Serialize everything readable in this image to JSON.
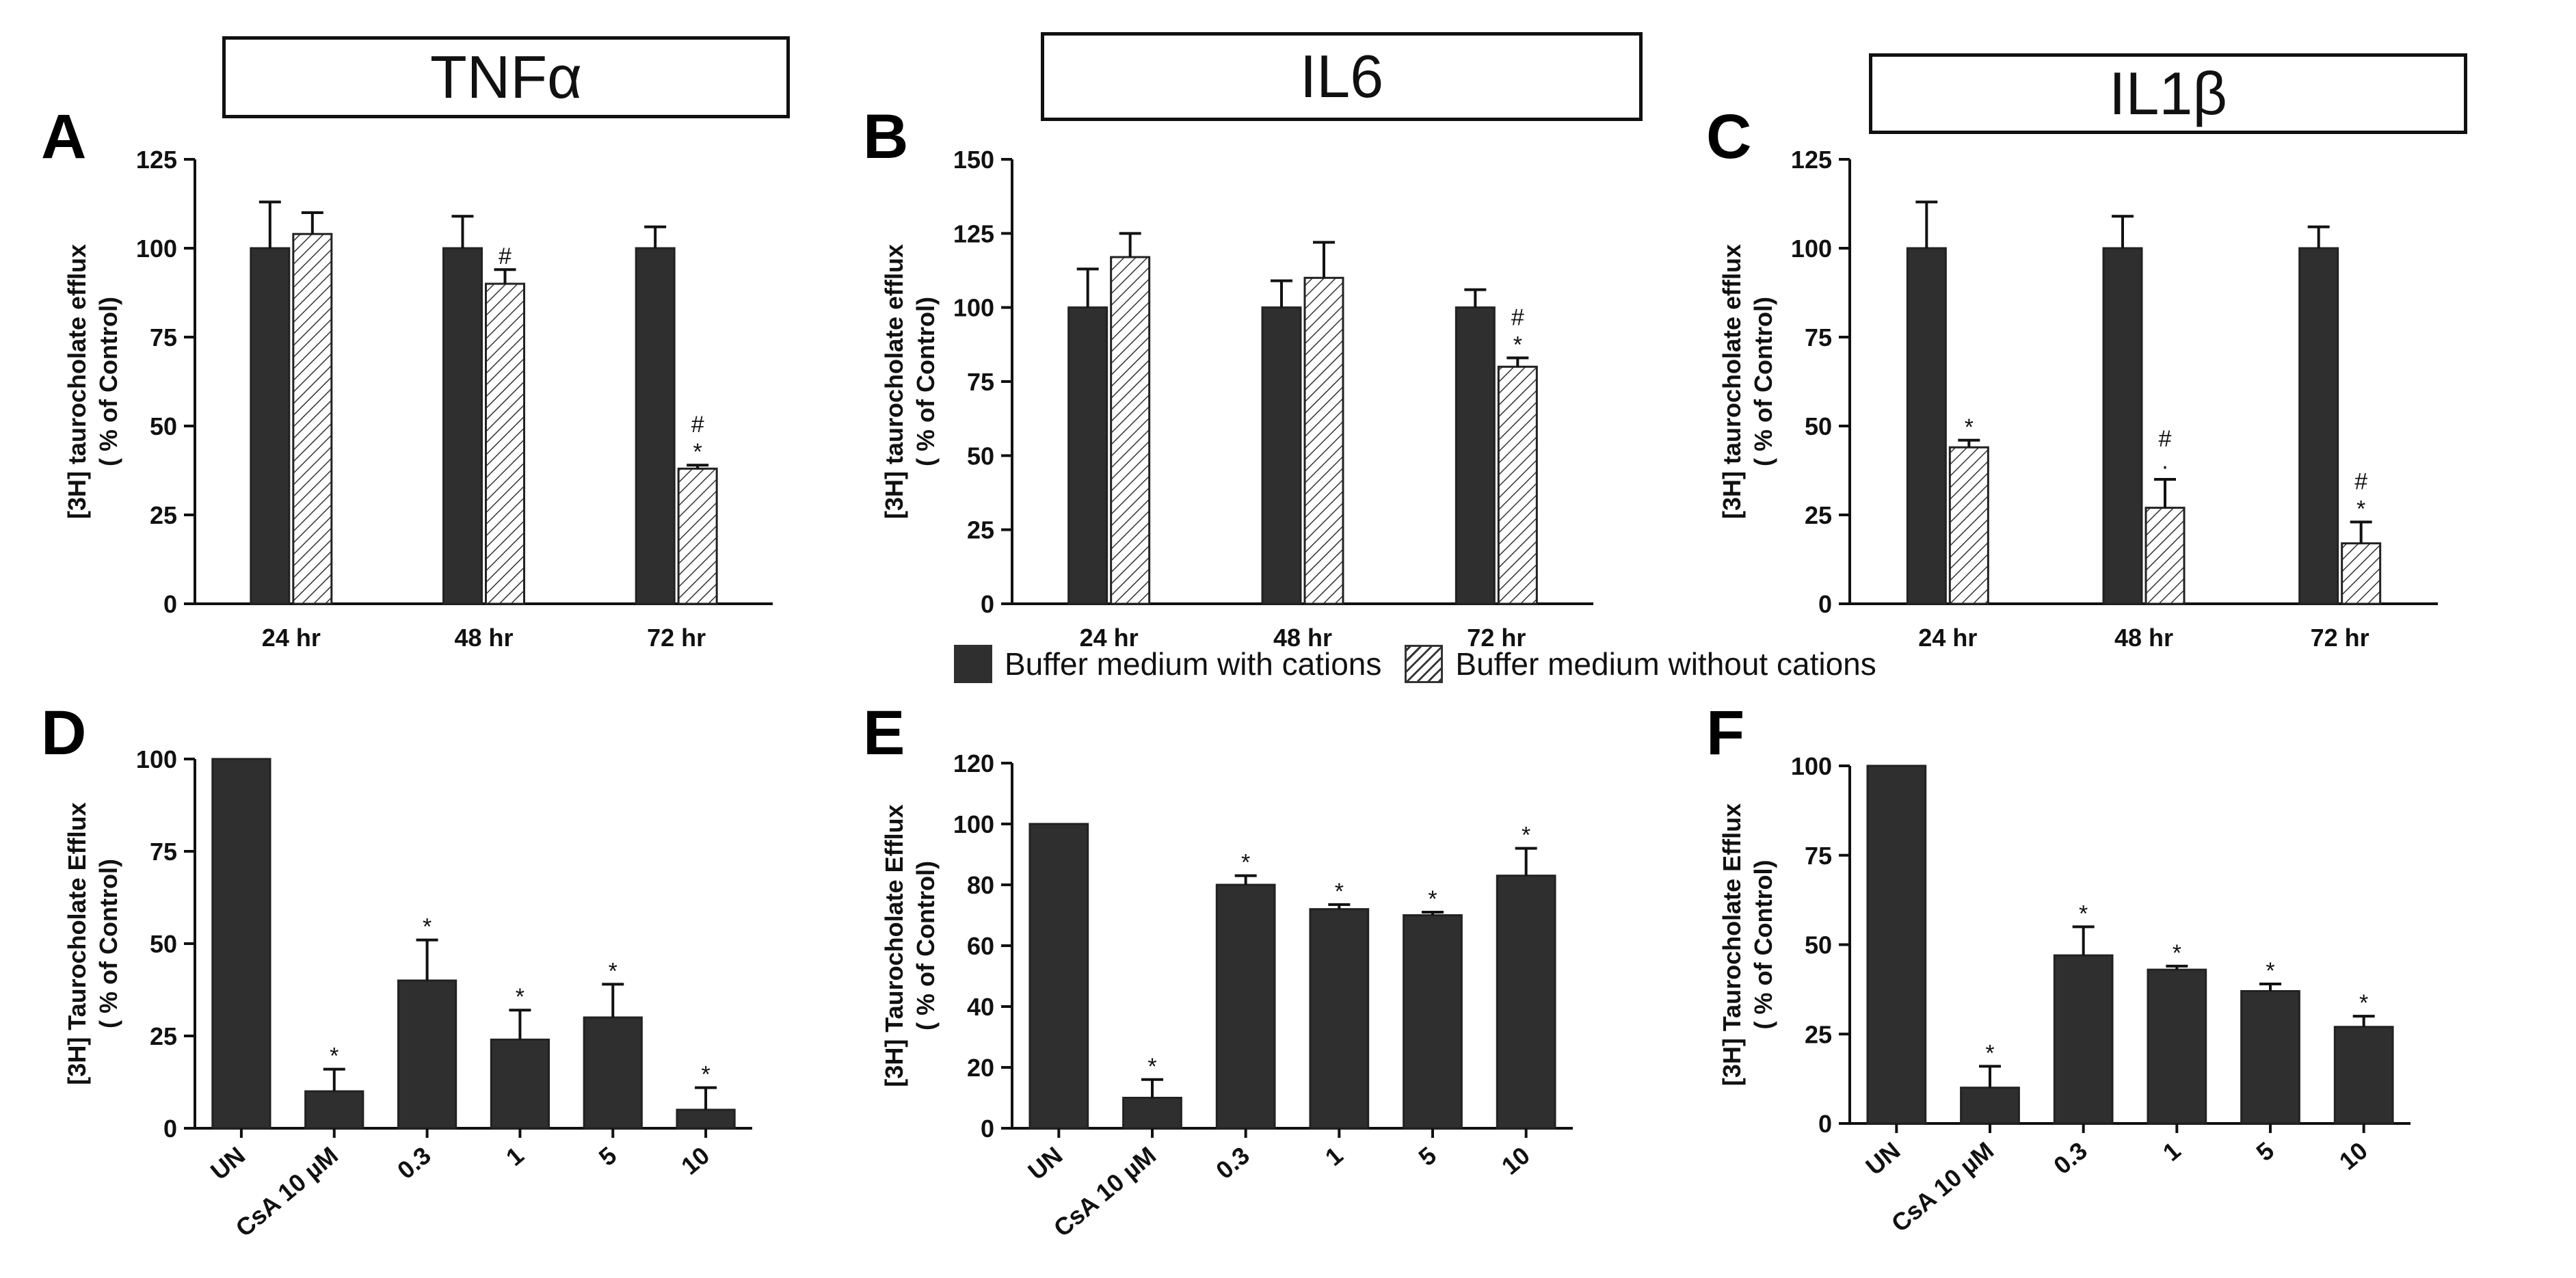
{
  "headers": [
    "TNFα",
    "IL6",
    "IL1β"
  ],
  "panel_labels": [
    "A",
    "B",
    "C",
    "D",
    "E",
    "F"
  ],
  "legend": {
    "dark": "Buffer medium with cations",
    "hatched": "Buffer medium without cations"
  },
  "colors": {
    "dark": "#2f2f2f",
    "hatch": "#333333",
    "axis": "#111111"
  },
  "chart_data": [
    {
      "panel": "A",
      "type": "bar",
      "categories": [
        "24 hr",
        "48 hr",
        "72 hr"
      ],
      "ylabel": [
        "[3H] taurocholate efflux",
        "( % of Control)"
      ],
      "ylim": [
        0,
        125
      ],
      "yticks": [
        0,
        25,
        50,
        75,
        100,
        125
      ],
      "series": [
        {
          "name": "Buffer medium with cations",
          "values": [
            100,
            100,
            100
          ],
          "errors": [
            13,
            9,
            6
          ],
          "annotations": [
            "",
            "",
            ""
          ]
        },
        {
          "name": "Buffer medium without cations",
          "values": [
            104,
            90,
            38
          ],
          "errors": [
            6,
            4,
            1
          ],
          "annotations": [
            "",
            "#",
            "#\n*"
          ]
        }
      ]
    },
    {
      "panel": "B",
      "type": "bar",
      "categories": [
        "24 hr",
        "48 hr",
        "72 hr"
      ],
      "ylabel": [
        "[3H] taurocholate efflux",
        "( % of Control)"
      ],
      "ylim": [
        0,
        150
      ],
      "yticks": [
        0,
        25,
        50,
        75,
        100,
        125,
        150
      ],
      "series": [
        {
          "name": "Buffer medium with cations",
          "values": [
            100,
            100,
            100
          ],
          "errors": [
            13,
            9,
            6
          ],
          "annotations": [
            "",
            "",
            ""
          ]
        },
        {
          "name": "Buffer medium without cations",
          "values": [
            117,
            110,
            80
          ],
          "errors": [
            8,
            12,
            3
          ],
          "annotations": [
            "",
            "",
            "#\n*"
          ]
        }
      ]
    },
    {
      "panel": "C",
      "type": "bar",
      "categories": [
        "24 hr",
        "48 hr",
        "72 hr"
      ],
      "ylabel": [
        "[3H] taurocholate efflux",
        "( % of Control)"
      ],
      "ylim": [
        0,
        125
      ],
      "yticks": [
        0,
        25,
        50,
        75,
        100,
        125
      ],
      "series": [
        {
          "name": "Buffer medium with cations",
          "values": [
            100,
            100,
            100
          ],
          "errors": [
            13,
            9,
            6
          ],
          "annotations": [
            "",
            "",
            ""
          ]
        },
        {
          "name": "Buffer medium without cations",
          "values": [
            44,
            27,
            17
          ],
          "errors": [
            2,
            8,
            6
          ],
          "annotations": [
            "*",
            "#\n·",
            "#\n*"
          ]
        }
      ]
    },
    {
      "panel": "D",
      "type": "bar",
      "categories": [
        "UN",
        "CsA 10 µM",
        "0.3",
        "1",
        "5",
        "10"
      ],
      "ylabel": [
        "[3H] Taurocholate Efflux",
        "( % of Control)"
      ],
      "ylim": [
        0,
        100
      ],
      "yticks": [
        0,
        25,
        50,
        75,
        100
      ],
      "series": [
        {
          "name": "Taurocholate efflux",
          "values": [
            100,
            10,
            40,
            24,
            30,
            5
          ],
          "errors": [
            0,
            6,
            11,
            8,
            9,
            6
          ],
          "annotations": [
            "",
            "*",
            "*",
            "*",
            "*",
            "*"
          ]
        }
      ]
    },
    {
      "panel": "E",
      "type": "bar",
      "categories": [
        "UN",
        "CsA 10 µM",
        "0.3",
        "1",
        "5",
        "10"
      ],
      "ylabel": [
        "[3H] Taurocholate Efflux",
        "( % of Control)"
      ],
      "ylim": [
        0,
        120
      ],
      "yticks": [
        0,
        20,
        40,
        60,
        80,
        100,
        120
      ],
      "series": [
        {
          "name": "Taurocholate efflux",
          "values": [
            100,
            10,
            80,
            72,
            70,
            83
          ],
          "errors": [
            0,
            6,
            3,
            1.5,
            1,
            9
          ],
          "annotations": [
            "",
            "*",
            "*",
            "*",
            "*",
            "*"
          ]
        }
      ]
    },
    {
      "panel": "F",
      "type": "bar",
      "categories": [
        "UN",
        "CsA 10 µM",
        "0.3",
        "1",
        "5",
        "10"
      ],
      "ylabel": [
        "[3H] Taurocholate Efflux",
        "( % of Control)"
      ],
      "ylim": [
        0,
        100
      ],
      "yticks": [
        0,
        25,
        50,
        75,
        100
      ],
      "series": [
        {
          "name": "Taurocholate efflux",
          "values": [
            100,
            10,
            47,
            43,
            37,
            27
          ],
          "errors": [
            0,
            6,
            8,
            1,
            2,
            3
          ],
          "annotations": [
            "",
            "*",
            "*",
            "*",
            "*",
            "*"
          ]
        }
      ]
    }
  ]
}
